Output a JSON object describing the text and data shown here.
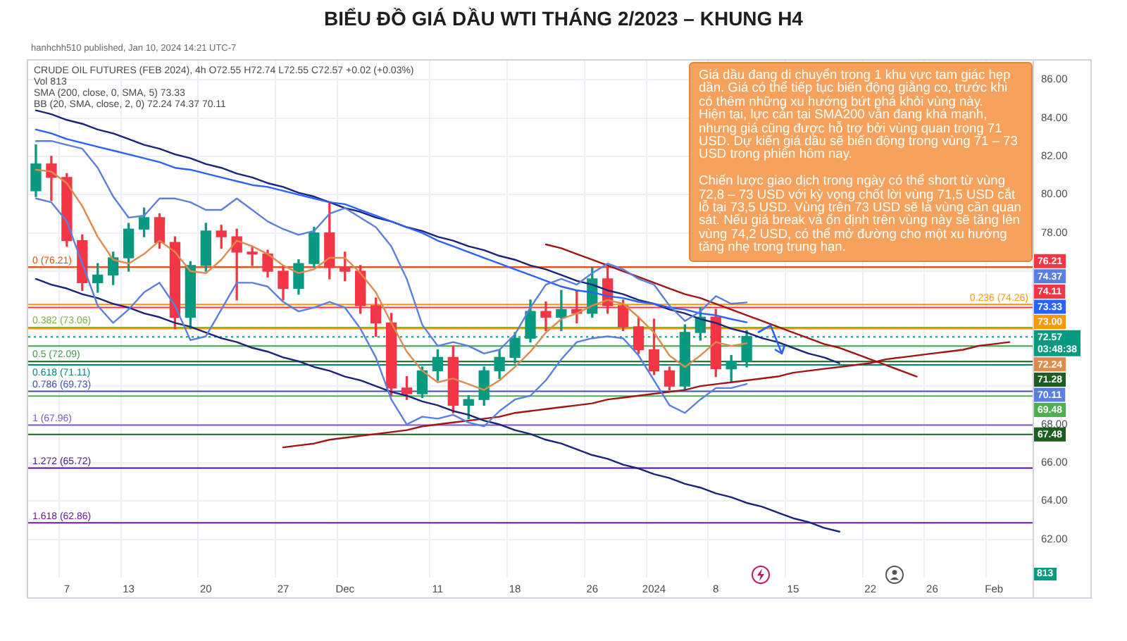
{
  "chart_data": {
    "type": "candlestick",
    "title": "BIỂU ĐỒ GIÁ DẦU WTI THÁNG 2/2023 – KHUNG H4",
    "categories": [
      null,
      null,
      "7",
      null,
      null,
      null,
      "13",
      null,
      null,
      null,
      null,
      "20",
      null,
      null,
      null,
      null,
      "27",
      null,
      null,
      null,
      "Dec",
      null,
      null,
      null,
      null,
      null,
      "11",
      null,
      null,
      null,
      null,
      "18",
      null,
      null,
      null,
      null,
      "26",
      null,
      null,
      null,
      "2024",
      null,
      null,
      null,
      "8",
      null,
      null,
      null,
      null,
      "15",
      null,
      null,
      null,
      null,
      "22",
      null,
      null,
      null,
      "26",
      null,
      null,
      null,
      "Feb",
      null,
      null
    ],
    "ohlc": [
      [
        80.2,
        82.6,
        79.9,
        81.6
      ],
      [
        81.6,
        82.0,
        79.7,
        80.9
      ],
      [
        80.9,
        81.1,
        77.3,
        77.6
      ],
      [
        77.6,
        77.9,
        75.0,
        75.4
      ],
      [
        75.4,
        76.4,
        74.9,
        75.8
      ],
      [
        75.8,
        77.0,
        75.3,
        76.7
      ],
      [
        76.7,
        78.5,
        76.0,
        78.2
      ],
      [
        78.2,
        79.3,
        77.8,
        78.8
      ],
      [
        78.8,
        79.0,
        77.2,
        77.5
      ],
      [
        77.5,
        77.8,
        73.0,
        73.6
      ],
      [
        73.6,
        76.5,
        73.0,
        76.3
      ],
      [
        76.3,
        78.5,
        76.0,
        78.1
      ],
      [
        78.1,
        78.4,
        77.2,
        77.8
      ],
      [
        77.8,
        78.2,
        74.5,
        77.0
      ],
      [
        77.0,
        77.3,
        76.3,
        76.9
      ],
      [
        76.9,
        77.1,
        75.7,
        76.0
      ],
      [
        76.0,
        76.3,
        74.5,
        75.1
      ],
      [
        75.1,
        76.6,
        74.8,
        76.4
      ],
      [
        76.4,
        78.3,
        76.2,
        78.0
      ],
      [
        78.0,
        79.6,
        75.6,
        76.2
      ],
      [
        76.2,
        77.0,
        75.5,
        76.0
      ],
      [
        76.0,
        76.3,
        73.8,
        74.2
      ],
      [
        74.2,
        74.6,
        72.6,
        73.3
      ],
      [
        73.3,
        73.8,
        69.5,
        69.9
      ],
      [
        69.9,
        70.5,
        69.3,
        69.6
      ],
      [
        69.6,
        71.0,
        69.4,
        70.8
      ],
      [
        70.8,
        71.9,
        70.3,
        71.5
      ],
      [
        71.5,
        72.1,
        68.6,
        69.0
      ],
      [
        69.0,
        69.5,
        68.3,
        69.3
      ],
      [
        69.3,
        71.0,
        69.0,
        70.8
      ],
      [
        70.8,
        71.9,
        70.4,
        71.5
      ],
      [
        71.5,
        72.8,
        71.2,
        72.5
      ],
      [
        72.5,
        74.5,
        72.3,
        73.9
      ],
      [
        73.9,
        74.4,
        72.9,
        73.6
      ],
      [
        73.6,
        75.0,
        72.9,
        74.0
      ],
      [
        74.0,
        75.0,
        73.3,
        73.8
      ],
      [
        73.8,
        76.2,
        73.6,
        75.6
      ],
      [
        75.6,
        76.2,
        73.8,
        74.2
      ],
      [
        74.2,
        74.5,
        72.9,
        73.1
      ],
      [
        73.1,
        73.6,
        71.7,
        71.9
      ],
      [
        71.9,
        73.5,
        70.6,
        70.8
      ],
      [
        70.8,
        71.0,
        69.8,
        70.0
      ],
      [
        70.0,
        73.2,
        69.8,
        72.8
      ],
      [
        72.8,
        74.1,
        72.4,
        73.6
      ],
      [
        73.6,
        74.0,
        70.5,
        70.9
      ],
      [
        70.9,
        71.6,
        70.2,
        71.3
      ],
      [
        71.3,
        72.9,
        71.0,
        72.6
      ],
      null,
      null,
      null,
      null,
      null,
      null,
      null,
      null,
      null,
      null,
      null,
      null,
      null,
      null,
      null,
      null,
      null,
      null
    ],
    "colors": [
      "#089981",
      "#f23645",
      "#f23645",
      "#f23645",
      "#089981",
      "#089981",
      "#089981",
      "#089981",
      "#f23645",
      "#f23645",
      "#089981",
      "#089981",
      "#f23645",
      "#f23645",
      "#f23645",
      "#f23645",
      "#f23645",
      "#089981",
      "#089981",
      "#f23645",
      "#f23645",
      "#f23645",
      "#f23645",
      "#f23645",
      "#f23645",
      "#089981",
      "#089981",
      "#f23645",
      "#089981",
      "#089981",
      "#089981",
      "#089981",
      "#089981",
      "#f23645",
      "#089981",
      "#f23645",
      "#089981",
      "#f23645",
      "#f23645",
      "#f23645",
      "#f23645",
      "#f23645",
      "#089981",
      "#089981",
      "#f23645",
      "#089981",
      "#089981",
      null,
      null,
      null,
      null,
      null,
      null,
      null,
      null,
      null,
      null,
      null,
      null,
      null,
      null,
      null,
      null,
      null,
      null
    ],
    "series": [
      {
        "type": "line",
        "color": "#5b7fe0",
        "values": [
          82.8,
          82.8,
          82.6,
          82.4,
          81.4,
          79.9,
          78.8,
          78.9,
          79.8,
          79.8,
          79.6,
          79.2,
          79.2,
          79.8,
          79.2,
          78.6,
          78.2,
          77.9,
          78.1,
          79.0,
          79.3,
          78.8,
          78.3,
          77.3,
          75.6,
          73.2,
          72.1,
          72.3,
          72.1,
          71.7,
          71.9,
          72.7,
          74.1,
          75.3,
          75.6,
          75.3,
          75.9,
          76.4,
          76.1,
          75.6,
          75.3,
          74.2,
          73.4,
          73.9,
          74.7,
          74.3,
          74.37,
          null,
          null,
          null,
          null,
          null,
          null,
          null,
          null,
          null,
          null,
          null,
          null,
          null,
          null,
          null,
          null,
          null,
          null
        ]
      },
      {
        "type": "line",
        "color": "#e08a4c",
        "values": [
          81.3,
          81.2,
          80.6,
          79.4,
          77.8,
          76.6,
          76.4,
          76.9,
          77.6,
          77.0,
          76.0,
          75.9,
          76.6,
          77.6,
          77.3,
          76.9,
          76.3,
          75.9,
          76.1,
          76.7,
          76.7,
          75.9,
          74.9,
          73.3,
          71.8,
          70.8,
          70.2,
          70.4,
          70.1,
          69.8,
          70.3,
          71.0,
          71.8,
          72.8,
          73.5,
          73.8,
          74.2,
          74.5,
          74.3,
          73.6,
          72.8,
          71.6,
          71.0,
          71.6,
          72.3,
          72.1,
          72.24,
          null,
          null,
          null,
          null,
          null,
          null,
          null,
          null,
          null,
          null,
          null,
          null,
          null,
          null,
          null,
          null,
          null,
          null
        ]
      },
      {
        "type": "line",
        "color": "#5b7fe0",
        "values": [
          79.8,
          79.6,
          78.6,
          76.4,
          74.2,
          73.3,
          74.0,
          74.9,
          75.4,
          74.2,
          72.4,
          72.6,
          74.0,
          75.4,
          75.4,
          75.2,
          74.4,
          73.9,
          74.1,
          74.4,
          74.1,
          73.0,
          71.5,
          69.3,
          68.0,
          68.4,
          68.3,
          68.5,
          68.1,
          67.9,
          68.7,
          69.3,
          69.5,
          70.3,
          71.4,
          72.3,
          72.5,
          72.6,
          72.5,
          71.6,
          70.3,
          69.0,
          68.6,
          69.3,
          69.9,
          69.9,
          70.11,
          null,
          null,
          null,
          null,
          null,
          null,
          null,
          null,
          null,
          null,
          null,
          null,
          null,
          null,
          null,
          null,
          null,
          null
        ]
      },
      {
        "type": "line",
        "color": "#2962ff",
        "values": [
          83.4,
          83.2,
          82.9,
          82.7,
          82.5,
          82.3,
          82.1,
          81.9,
          81.7,
          81.4,
          81.3,
          81.1,
          80.9,
          80.7,
          80.5,
          80.4,
          80.2,
          80.0,
          79.8,
          79.6,
          79.5,
          79.2,
          78.9,
          78.6,
          78.3,
          78.0,
          77.6,
          77.3,
          77.0,
          76.7,
          76.4,
          76.1,
          75.8,
          75.5,
          75.2,
          75.0,
          74.9,
          74.7,
          74.6,
          74.4,
          74.3,
          74.1,
          74.0,
          73.8,
          73.7,
          73.5,
          73.33,
          null,
          null,
          null,
          null,
          null,
          null,
          null,
          null,
          null,
          null,
          null,
          null,
          null,
          null,
          null,
          null,
          null,
          null
        ]
      },
      {
        "type": "line",
        "color": "#1a237e",
        "values": [
          84.4,
          84.2,
          83.9,
          83.7,
          83.4,
          83.2,
          82.9,
          82.6,
          82.4,
          82.1,
          81.9,
          81.6,
          81.4,
          81.1,
          80.9,
          80.6,
          80.4,
          80.1,
          79.9,
          79.6,
          79.3,
          79.1,
          78.8,
          78.6,
          78.3,
          78.1,
          77.8,
          77.6,
          77.3,
          77.1,
          76.8,
          76.6,
          76.3,
          76.1,
          75.8,
          75.5,
          75.3,
          75.0,
          74.8,
          74.5,
          74.3,
          74.0,
          73.8,
          73.5,
          73.3,
          73.0,
          72.8,
          72.5,
          72.3,
          72.0,
          71.7,
          71.5,
          71.2,
          null,
          null,
          null,
          null,
          null,
          null,
          null,
          null,
          null,
          null,
          null,
          null
        ]
      },
      {
        "type": "line",
        "color": "#1a237e",
        "values": [
          75.6,
          75.3,
          75.1,
          74.8,
          74.6,
          74.3,
          74.1,
          73.8,
          73.6,
          73.3,
          73.1,
          72.8,
          72.5,
          72.3,
          72.0,
          71.8,
          71.5,
          71.3,
          71.0,
          70.8,
          70.5,
          70.3,
          70.0,
          69.7,
          69.5,
          69.2,
          69.0,
          68.7,
          68.5,
          68.2,
          68.0,
          67.7,
          67.5,
          67.2,
          67.0,
          66.7,
          66.4,
          66.2,
          65.9,
          65.7,
          65.4,
          65.2,
          64.9,
          64.7,
          64.4,
          64.2,
          63.9,
          63.7,
          63.4,
          63.1,
          62.9,
          62.6,
          62.4,
          null,
          null,
          null,
          null,
          null,
          null,
          null,
          null,
          null,
          null,
          null,
          null
        ]
      },
      {
        "type": "line",
        "color": "#a31515",
        "values": [
          null,
          null,
          null,
          null,
          null,
          null,
          null,
          null,
          null,
          null,
          null,
          null,
          null,
          null,
          null,
          null,
          66.8,
          66.9,
          67.0,
          67.2,
          67.3,
          67.4,
          67.5,
          67.6,
          67.7,
          67.9,
          68.0,
          68.1,
          68.2,
          68.3,
          68.4,
          68.6,
          68.7,
          68.8,
          68.9,
          69.0,
          69.1,
          69.3,
          69.4,
          69.5,
          69.6,
          69.7,
          69.8,
          70.0,
          70.1,
          70.2,
          70.3,
          70.4,
          70.5,
          70.7,
          70.8,
          70.9,
          71.0,
          71.1,
          71.2,
          71.4,
          71.5,
          71.6,
          71.7,
          71.8,
          71.9,
          72.1,
          72.2,
          72.3,
          null
        ]
      },
      {
        "type": "line",
        "color": "#a31515",
        "values": [
          null,
          null,
          null,
          null,
          null,
          null,
          null,
          null,
          null,
          null,
          null,
          null,
          null,
          null,
          null,
          null,
          null,
          null,
          null,
          null,
          null,
          null,
          null,
          null,
          null,
          null,
          null,
          null,
          null,
          null,
          null,
          null,
          null,
          77.4,
          77.2,
          76.9,
          76.6,
          76.3,
          76.0,
          75.7,
          75.4,
          75.1,
          74.8,
          74.6,
          74.3,
          74.0,
          73.7,
          73.4,
          73.1,
          72.8,
          72.5,
          72.2,
          72.0,
          71.7,
          71.4,
          71.1,
          70.8,
          70.5,
          null,
          null,
          null,
          null,
          null,
          null,
          null
        ]
      }
    ],
    "ylim": [
      60,
      87
    ],
    "yticks": [
      {
        "value": 62,
        "label": "62.00"
      },
      {
        "value": 64,
        "label": "64.00"
      },
      {
        "value": 66,
        "label": "66.00"
      },
      {
        "value": 68,
        "label": "68.00"
      },
      {
        "value": 70,
        "label": null
      },
      {
        "value": 72,
        "label": null
      },
      {
        "value": 74,
        "label": null
      },
      {
        "value": 76,
        "label": null
      },
      {
        "value": 78,
        "label": "78.00"
      },
      {
        "value": 80,
        "label": "80.00"
      },
      {
        "value": 82,
        "label": "82.00"
      },
      {
        "value": 84,
        "label": "84.00"
      },
      {
        "value": 86,
        "label": "86.00"
      }
    ],
    "grid": true,
    "ref_lines": [
      {
        "axis": "y",
        "value": 76.21,
        "label": "76.21",
        "color": "#f23645"
      },
      {
        "axis": "y",
        "value": 74.11,
        "label": "74.11",
        "color": "#f23645"
      },
      {
        "axis": "y",
        "value": 73.0,
        "label": "73.00",
        "color": "#ff9800"
      },
      {
        "axis": "y",
        "value": 72.57,
        "label": "72.57\n03:48:38",
        "color": "#089981",
        "line_style": "dotted"
      },
      {
        "axis": "y",
        "value": 71.28,
        "label": "71.28",
        "color": "#1b5e20"
      },
      {
        "axis": "y",
        "value": 69.48,
        "label": "69.48",
        "color": "#4caf50"
      },
      {
        "axis": "y",
        "value": 67.48,
        "label": "67.48",
        "color": "#1b5e20"
      },
      {
        "axis": "y",
        "value": 76.21,
        "color": "#e65100"
      },
      {
        "axis": "y",
        "value": 74.26,
        "color": "#ff9800"
      },
      {
        "axis": "y",
        "value": 73.06,
        "color": "#7cb342"
      },
      {
        "axis": "y",
        "value": 72.09,
        "color": "#43a047"
      },
      {
        "axis": "y",
        "value": 71.11,
        "color": "#00897b"
      },
      {
        "axis": "y",
        "value": 69.73,
        "color": "#3f51b5"
      },
      {
        "axis": "y",
        "value": 67.96,
        "color": "#7e57c2"
      },
      {
        "axis": "y",
        "value": 65.72,
        "color": "#4a148c"
      },
      {
        "axis": "y",
        "value": 62.86,
        "color": "#6a1b9a"
      }
    ],
    "annotations": [
      "hanhchh510 published, Jan 10, 2024 14:21 UTC-7",
      "CRUDE OIL FUTURES (FEB 2024), 4h O72.55 H72.74 L72.55 C72.57 +0.02 (+0.03%)",
      "Vol 813",
      "SMA (200, close, 0, SMA, 5) 73.33",
      "BB (20, SMA, close, 2, 0) 72.24 74.37 70.11",
      "Giá dầu đang di chuyển trong 1 khu vực tam giác hẹp dần. Giá có thể tiếp tục biến động giằng co, trước khi có thêm những xu hướng bứt phá khỏi vùng này.\nHiện tại, lực cản tại SMA200 vẫn đang khá mạnh, nhưng giá cũng được hỗ trợ bởi vùng quan trọng 71 USD. Dự kiến giá dầu sẽ biến động trong vùng 71 – 73 USD trong phiên hôm nay.\n\nChiến lược giao dịch trong ngày có thể short từ vùng 72,8 – 73 USD với kỳ vọng chốt lời vùng 71,5 USD cắt lỗ tại 73,5 USD. Vùng trên 73 USD sẽ là vùng cần quan sát. Nếu giá break và ổn định trên vùng này sẽ tăng lên vùng 74,2 USD, có thể mở đường cho một xu hướng tăng nhẹ trong trung hạn.",
      "813",
      "74.37",
      "72.24",
      "70.11",
      "73.33",
      {
        "text": "0 (76.21)",
        "y": 76.21
      },
      {
        "text": "0.236 (74.26)",
        "y": 74.26
      },
      {
        "text": "0.382 (73.06)",
        "y": 73.06
      },
      {
        "text": "0.5 (72.09)",
        "y": 72.09
      },
      {
        "text": "0.618 (71.11)",
        "y": 71.11
      },
      {
        "text": "0.786 (69.73)",
        "y": 69.73
      },
      {
        "text": "1 (67.96)",
        "y": 67.96
      },
      {
        "text": "1.272 (65.72)",
        "y": 65.72
      },
      {
        "text": "1.618 (62.86)",
        "y": 62.86
      }
    ]
  }
}
